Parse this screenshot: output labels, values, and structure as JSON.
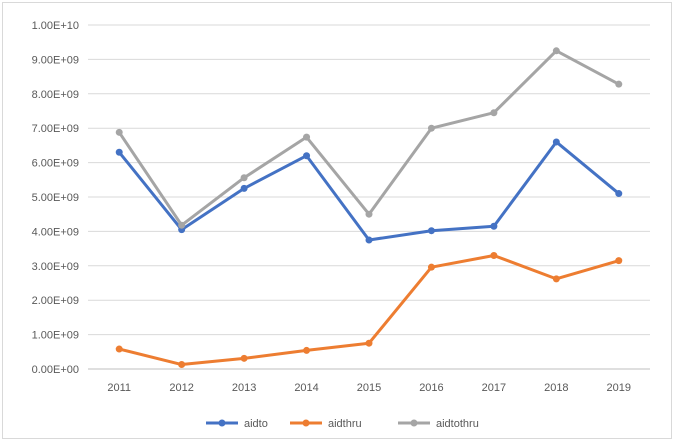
{
  "chart_data": {
    "type": "line",
    "categories": [
      "2011",
      "2012",
      "2013",
      "2014",
      "2015",
      "2016",
      "2017",
      "2018",
      "2019"
    ],
    "ylim": [
      0,
      10000000000
    ],
    "y_ticks": [
      {
        "value": 0,
        "label": "0.00E+00"
      },
      {
        "value": 1000000000,
        "label": "1.00E+09"
      },
      {
        "value": 2000000000,
        "label": "2.00E+09"
      },
      {
        "value": 3000000000,
        "label": "3.00E+09"
      },
      {
        "value": 4000000000,
        "label": "4.00E+09"
      },
      {
        "value": 5000000000,
        "label": "5.00E+09"
      },
      {
        "value": 6000000000,
        "label": "6.00E+09"
      },
      {
        "value": 7000000000,
        "label": "7.00E+09"
      },
      {
        "value": 8000000000,
        "label": "8.00E+09"
      },
      {
        "value": 9000000000,
        "label": "9.00E+09"
      },
      {
        "value": 10000000000,
        "label": "1.00E+10"
      }
    ],
    "grid": true,
    "legend_position": "bottom",
    "series": [
      {
        "name": "aidto",
        "color": "#4472c4",
        "values": [
          6300000000,
          4050000000,
          5250000000,
          6200000000,
          3750000000,
          4020000000,
          4150000000,
          6600000000,
          5100000000
        ]
      },
      {
        "name": "aidthru",
        "color": "#ed7d31",
        "values": [
          580000000,
          130000000,
          310000000,
          540000000,
          750000000,
          2960000000,
          3300000000,
          2620000000,
          3150000000
        ]
      },
      {
        "name": "aidtothru",
        "color": "#a5a5a5",
        "values": [
          6880000000,
          4180000000,
          5560000000,
          6740000000,
          4500000000,
          7000000000,
          7450000000,
          9250000000,
          8280000000
        ]
      }
    ]
  }
}
